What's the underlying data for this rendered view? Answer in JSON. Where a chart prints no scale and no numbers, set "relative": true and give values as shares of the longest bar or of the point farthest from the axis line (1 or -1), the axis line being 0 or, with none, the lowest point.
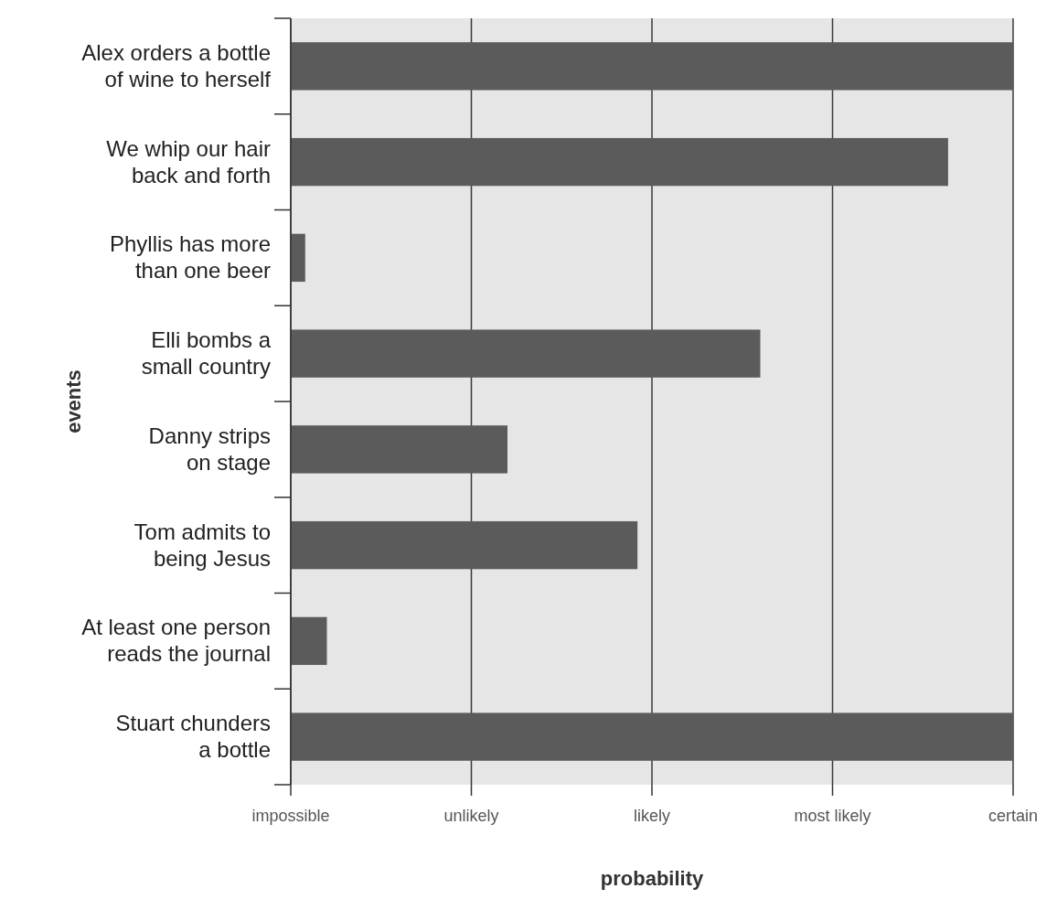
{
  "chart_data": {
    "type": "bar",
    "orientation": "horizontal",
    "relative": true,
    "xlabel": "probability",
    "ylabel": "events",
    "categories": [
      "Alex orders a bottle of wine to herself",
      "We whip our hair back and forth",
      "Phyllis has more than one beer",
      "Elli bombs a small country",
      "Danny strips on stage",
      "Tom admits to being Jesus",
      "At least one person reads the journal",
      "Stuart chunders a bottle"
    ],
    "values": [
      1,
      0.91,
      0.02,
      0.65,
      0.3,
      0.48,
      0.05,
      1
    ],
    "color": "#5b5b5b",
    "annotations": [
      "impossible",
      "unlikely",
      "likely",
      "most likely",
      "certain"
    ],
    "grid": "x"
  }
}
